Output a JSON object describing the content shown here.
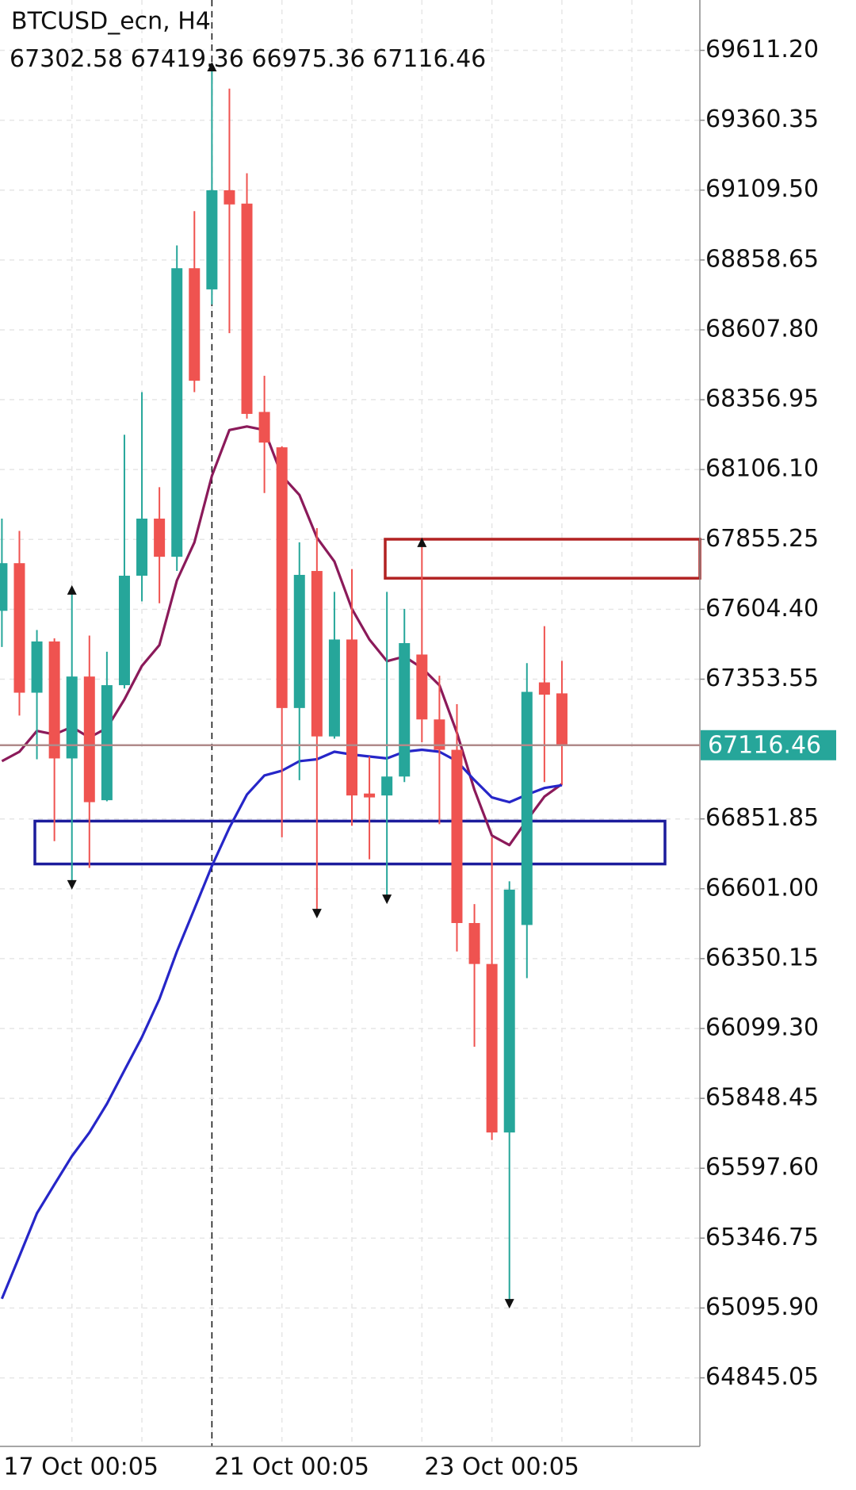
{
  "chart_data": {
    "type": "candlestick",
    "title": "BTCUSD_ecn, H4",
    "categories": [
      "17 Oct 00:05",
      null,
      null,
      null,
      null,
      null,
      null,
      null,
      null,
      null,
      null,
      null,
      "21 Oct 00:05",
      null,
      null,
      null,
      null,
      null,
      null,
      null,
      null,
      null,
      null,
      null,
      "23 Oct 00:05",
      null,
      null,
      null,
      null,
      null,
      null,
      null,
      null
    ],
    "open": [
      67599,
      67770,
      67305,
      67489,
      67069,
      67363,
      66919,
      67332,
      67725,
      67930,
      67793,
      68829,
      68753,
      69109,
      69061,
      68313,
      68186,
      67250,
      67742,
      67148,
      67496,
      66943,
      66936,
      67004,
      67442,
      67209,
      67100,
      66478,
      66331,
      65726,
      66471,
      67342,
      67302.58
    ],
    "high": [
      67930,
      67886,
      67530,
      67500,
      67674,
      67510,
      67452,
      68231,
      68384,
      68043,
      68911,
      69034,
      69553,
      69474,
      69170,
      68443,
      68190,
      67845,
      67896,
      67667,
      67749,
      67076,
      67667,
      67606,
      67845,
      67366,
      67264,
      66546,
      66786,
      66628,
      67411,
      67544,
      67419.36
    ],
    "low": [
      67469,
      67223,
      67066,
      66772,
      66615,
      66676,
      66915,
      67320,
      67633,
      67626,
      67742,
      68384,
      68699,
      68596,
      68289,
      68022,
      66786,
      66991,
      66512,
      67140,
      66827,
      66707,
      66563,
      66984,
      67127,
      66833,
      66376,
      66034,
      65699,
      65111,
      66280,
      66984,
      66975.36
    ],
    "close": [
      67770,
      67305,
      67489,
      67069,
      67363,
      66912,
      67332,
      67725,
      67930,
      67793,
      68829,
      68425,
      69109,
      69058,
      68306,
      68203,
      67250,
      67728,
      67148,
      67496,
      66936,
      66929,
      67004,
      67483,
      67209,
      67100,
      66478,
      66331,
      65726,
      66598,
      67308,
      67298,
      67116.46
    ],
    "up_color": "#26a69a",
    "down_color": "#ef5350",
    "series": [
      {
        "color": "#8b1a5a",
        "values": [
          67059,
          67093,
          67168,
          67155,
          67182,
          67144,
          67178,
          67281,
          67401,
          67476,
          67708,
          67845,
          68084,
          68248,
          68261,
          68248,
          68084,
          68015,
          67862,
          67776,
          67606,
          67496,
          67418,
          67435,
          67394,
          67332,
          67161,
          66956,
          66792,
          66758,
          66847,
          66932,
          66977
        ]
      },
      {
        "color": "#2626c8",
        "values": [
          65129,
          65282,
          65436,
          65539,
          65641,
          65726,
          65829,
          65949,
          66068,
          66205,
          66376,
          66529,
          66683,
          66820,
          66939,
          67008,
          67025,
          67059,
          67066,
          67093,
          67083,
          67076,
          67069,
          67093,
          67100,
          67093,
          67059,
          66991,
          66929,
          66912,
          66939,
          66963,
          66973
        ]
      }
    ],
    "zones": [
      {
        "color": "#b22222",
        "low": 67716,
        "high": 67856
      },
      {
        "color": "#1c1c9c",
        "low": 66690,
        "high": 66844
      }
    ],
    "ylim": [
      64599,
      69792
    ],
    "yticks": [
      {
        "value": 69611.2,
        "label": "69611.20"
      },
      69360.35,
      {
        "value": 69109.5,
        "label": "69109.50"
      },
      68858.65,
      {
        "value": 68607.8,
        "label": "68607.80"
      },
      68356.95,
      {
        "value": 68106.1,
        "label": "68106.10"
      },
      67855.25,
      {
        "value": 67604.4,
        "label": "67604.40"
      },
      67353.55,
      66851.85,
      {
        "value": 66601,
        "label": "66601.00"
      },
      66350.15,
      {
        "value": 66099.3,
        "label": "66099.30"
      },
      65848.45,
      {
        "value": 65597.6,
        "label": "65597.60"
      },
      65346.75,
      {
        "value": 65095.9,
        "label": "65095.90"
      },
      64845.05
    ],
    "grid": true
  }
}
